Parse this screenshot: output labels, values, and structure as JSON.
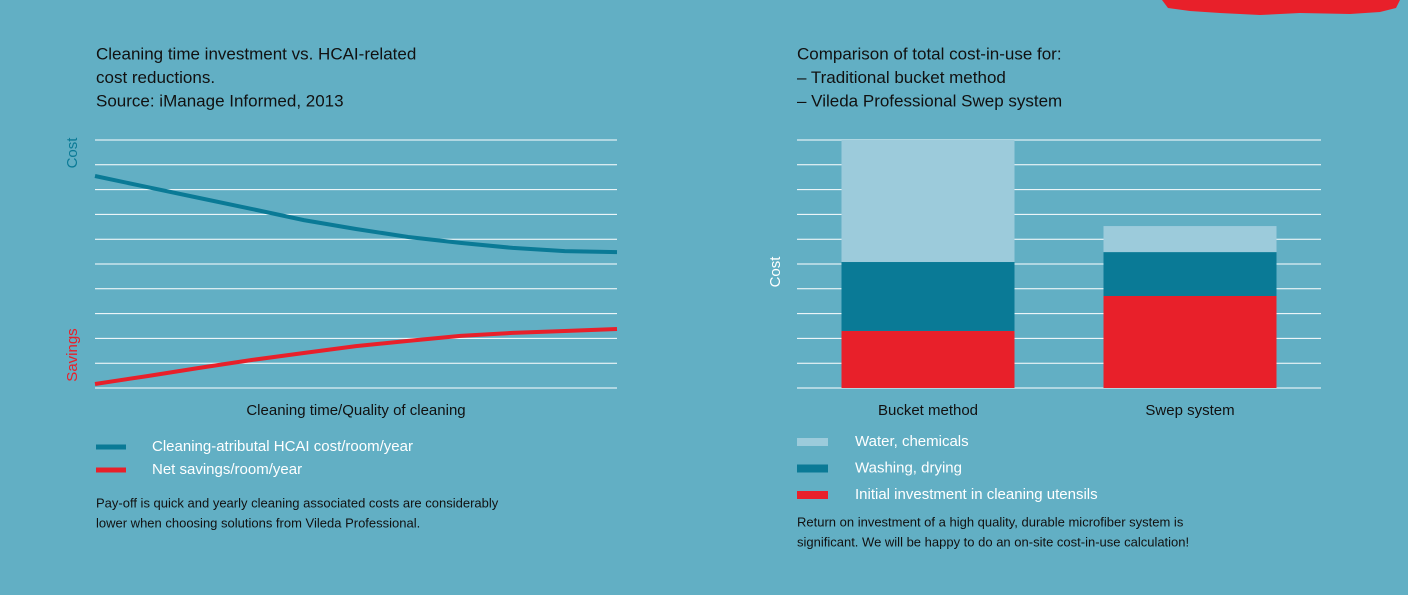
{
  "chart_data": [
    {
      "type": "line",
      "title": [
        "Cleaning time investment vs. HCAI-related",
        "cost reductions.",
        "Source: iManage Informed, 2013"
      ],
      "xlabel": "Cleaning time/Quality of cleaning",
      "ylabel_top": {
        "text": "Cost",
        "color": "#0a7a96"
      },
      "ylabel_bottom": {
        "text": "Savings",
        "color": "#e8202a"
      },
      "x": [
        0,
        1,
        2,
        3,
        4,
        5,
        6,
        7,
        8,
        9,
        10
      ],
      "xlim": [
        0,
        10
      ],
      "ylim": [
        0,
        10
      ],
      "yticks": [
        0,
        1,
        2,
        3,
        4,
        5,
        6,
        7,
        8,
        9,
        10
      ],
      "show_tick_labels": false,
      "grid": true,
      "series": [
        {
          "name": "Cleaning-atributal HCAI cost/room/year",
          "color": "#0a7a96",
          "values": [
            8.55,
            8.1,
            7.66,
            7.22,
            6.77,
            6.41,
            6.09,
            5.85,
            5.65,
            5.52,
            5.48
          ]
        },
        {
          "name": "Net savings/room/year",
          "color": "#e8202a",
          "values": [
            0.16,
            0.48,
            0.81,
            1.13,
            1.41,
            1.69,
            1.9,
            2.1,
            2.22,
            2.3,
            2.38
          ]
        }
      ],
      "note": [
        "Pay-off is quick and yearly cleaning associated costs are considerably",
        "lower when choosing solutions from Vileda Professional."
      ]
    },
    {
      "type": "stacked-bar",
      "title": [
        "Comparison of total cost-in-use for:",
        "– Traditional bucket method",
        "– Vileda Professional Swep system"
      ],
      "ylabel": "Cost",
      "categories": [
        "Bucket method",
        "Swep  system"
      ],
      "ylim": [
        0,
        10
      ],
      "yticks": [
        0,
        1,
        2,
        3,
        4,
        5,
        6,
        7,
        8,
        9,
        10
      ],
      "show_tick_labels": false,
      "grid": true,
      "series": [
        {
          "name": "Water, chemicals",
          "color": "#9ccbdb",
          "values": [
            4.92,
            1.05
          ]
        },
        {
          "name": "Washing, drying",
          "color": "#0a7a96",
          "values": [
            2.78,
            1.77
          ]
        },
        {
          "name": "Initial investment in cleaning utensils",
          "color": "#e8202a",
          "values": [
            2.3,
            3.71
          ]
        }
      ],
      "note": [
        "Return on investment of a high quality, durable microfiber system is",
        "significant. We will be happy to do an on-site cost-in-use calculation!"
      ]
    }
  ]
}
